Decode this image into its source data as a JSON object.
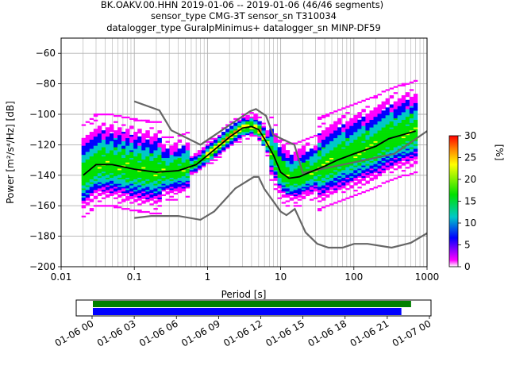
{
  "chart_data": {
    "type": "heatmap",
    "title_lines": [
      "BK.OAKV.00.HHN   2019-01-06 -- 2019-01-06  (46/46 segments)",
      "sensor_type CMG-3T sensor_sn T310034",
      "datalogger_type GuralpMinimus+ datalogger_sn MINP-DF59"
    ],
    "xlabel": "Period [s]",
    "ylabel": "Power [m²/s⁴/Hz] [dB]",
    "x_scale": "log",
    "xlim": [
      0.01,
      1000
    ],
    "ylim": [
      -200,
      -50
    ],
    "x_ticks": [
      {
        "value": 0.01,
        "label": "0.01"
      },
      {
        "value": 0.1,
        "label": "0.1"
      },
      {
        "value": 1,
        "label": "1"
      },
      {
        "value": 10,
        "label": "10"
      },
      {
        "value": 100,
        "label": "100"
      },
      {
        "value": 1000,
        "label": "1000"
      }
    ],
    "y_ticks": [
      -60,
      -80,
      -100,
      -120,
      -140,
      -160,
      -180,
      -200
    ],
    "grid": true,
    "colorbar": {
      "label": "[%]",
      "range": [
        0,
        30
      ],
      "ticks": [
        0,
        5,
        10,
        15,
        20,
        25,
        30
      ]
    },
    "noise_model_high": {
      "x": [
        0.1,
        0.22,
        0.32,
        0.8,
        3.8,
        4.6,
        6.3,
        7.9,
        15.4,
        20,
        354.8,
        1000
      ],
      "y": [
        -91.5,
        -97.4,
        -110.5,
        -120,
        -98,
        -96.5,
        -101,
        -113.5,
        -120,
        -138.5,
        -126,
        -111
      ]
    },
    "noise_model_low": {
      "x": [
        0.1,
        0.17,
        0.4,
        0.8,
        1.24,
        2.4,
        4.3,
        5,
        6,
        10,
        12,
        15.6,
        21.9,
        31.6,
        45,
        70,
        101,
        154,
        328,
        600,
        1000
      ],
      "y": [
        -168,
        -166.7,
        -166.7,
        -169.2,
        -163.7,
        -148.6,
        -141.1,
        -141.1,
        -149,
        -163.8,
        -166.2,
        -162.1,
        -177.5,
        -185,
        -187.5,
        -187.5,
        -185,
        -185,
        -187.5,
        -184.4,
        -178
      ]
    },
    "mode_curve": {
      "x": [
        0.02,
        0.03,
        0.05,
        0.1,
        0.2,
        0.4,
        0.7,
        1,
        2,
        3,
        4,
        5,
        6,
        8,
        10,
        13,
        18,
        25,
        40,
        60,
        100,
        200,
        300,
        700
      ],
      "y": [
        -140,
        -133,
        -133,
        -136,
        -138,
        -137,
        -133,
        -127,
        -115,
        -109,
        -108,
        -110,
        -116,
        -127,
        -138,
        -142,
        -141,
        -138,
        -134,
        -130,
        -126,
        -121,
        -116,
        -111
      ]
    }
  },
  "timeline": {
    "ticks": [
      "01-06 00",
      "01-06 03",
      "01-06 06",
      "01-06 09",
      "01-06 12",
      "01-06 15",
      "01-06 18",
      "01-06 21",
      "01-07 00"
    ],
    "data_coverage": [
      0.0,
      0.985
    ],
    "psd_coverage": [
      0.0,
      0.955
    ],
    "data_color": "#008000",
    "psd_color": "#0000ff"
  }
}
